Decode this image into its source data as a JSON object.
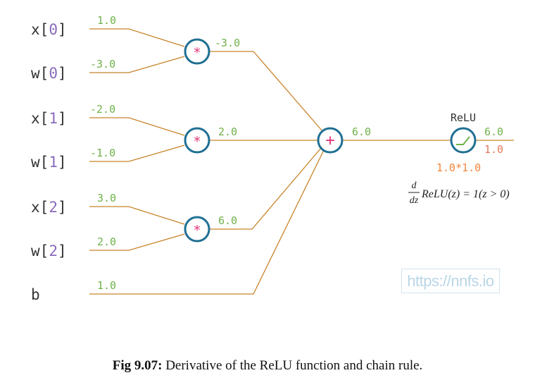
{
  "inputs": {
    "x0": {
      "name": "x",
      "bracket_open": "[",
      "index": "0",
      "bracket_close": "]",
      "value": "1.0"
    },
    "w0": {
      "name": "w",
      "bracket_open": "[",
      "index": "0",
      "bracket_close": "]",
      "value": "-3.0"
    },
    "x1": {
      "name": "x",
      "bracket_open": "[",
      "index": "1",
      "bracket_close": "]",
      "value": "-2.0"
    },
    "w1": {
      "name": "w",
      "bracket_open": "[",
      "index": "1",
      "bracket_close": "]",
      "value": "-1.0"
    },
    "x2": {
      "name": "x",
      "bracket_open": "[",
      "index": "2",
      "bracket_close": "]",
      "value": "3.0"
    },
    "w2": {
      "name": "w",
      "bracket_open": "[",
      "index": "2",
      "bracket_close": "]",
      "value": "2.0"
    },
    "b": {
      "name": "b",
      "value": "1.0"
    }
  },
  "nodes": {
    "mul0": {
      "symbol": "*",
      "output": "-3.0"
    },
    "mul1": {
      "symbol": "*",
      "output": "2.0"
    },
    "mul2": {
      "symbol": "*",
      "output": "6.0"
    },
    "sum": {
      "symbol": "+",
      "output": "6.0"
    },
    "relu": {
      "label": "ReLU",
      "output": "6.0",
      "gradient": "1.0",
      "chain": "1.0*1.0"
    }
  },
  "formula": {
    "numerator": "d",
    "denominator": "dz",
    "expression": "ReLU(z) = 1(z > 0)"
  },
  "watermark": "https://nnfs.io",
  "caption": {
    "label": "Fig 9.07:",
    "text": " Derivative of the ReLU function and chain rule."
  },
  "colors": {
    "wire": "#c8832a",
    "value_green": "#6fb24a",
    "gradient_red": "#e27a5a",
    "chain_orange": "#f0853a",
    "node_ring": "#1f6f93",
    "node_symbol": "#e0357a",
    "index_purple": "#8a6bbd",
    "label_dark": "#333333"
  }
}
